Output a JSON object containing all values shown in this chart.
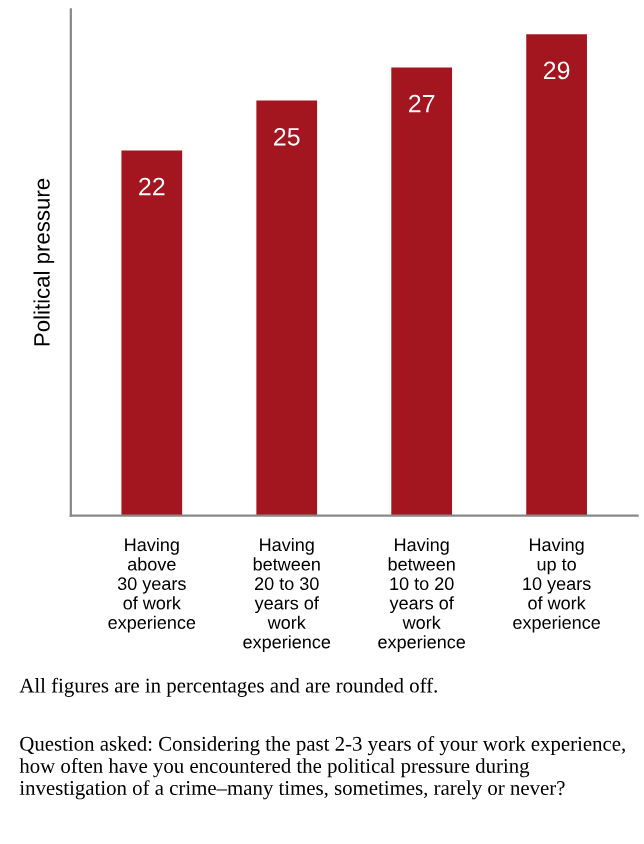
{
  "chart_data": {
    "type": "bar",
    "ylabel": "Political pressure",
    "categories": [
      "Having\nabove\n30 years\nof work\nexperience",
      "Having\nbetween\n20 to 30\nyears of\nwork\nexperience",
      "Having\nbetween\n10 to 20\nyears of\nwork\nexperience",
      "Having\nup to\n10 years\nof work\nexperience"
    ],
    "values": [
      22,
      25,
      27,
      29
    ],
    "color": "#a3151f",
    "ylim": [
      0,
      30.5
    ],
    "data_labels": true,
    "grid": false,
    "legend": false,
    "tick_labels": "x",
    "annotations": [
      "All figures are in percentages and are rounded off.",
      "Question asked: Considering the past 2-3 years of your work experience, how often have you encountered the political pressure during investigation of a crime–many times, sometimes, rarely or never?"
    ]
  }
}
